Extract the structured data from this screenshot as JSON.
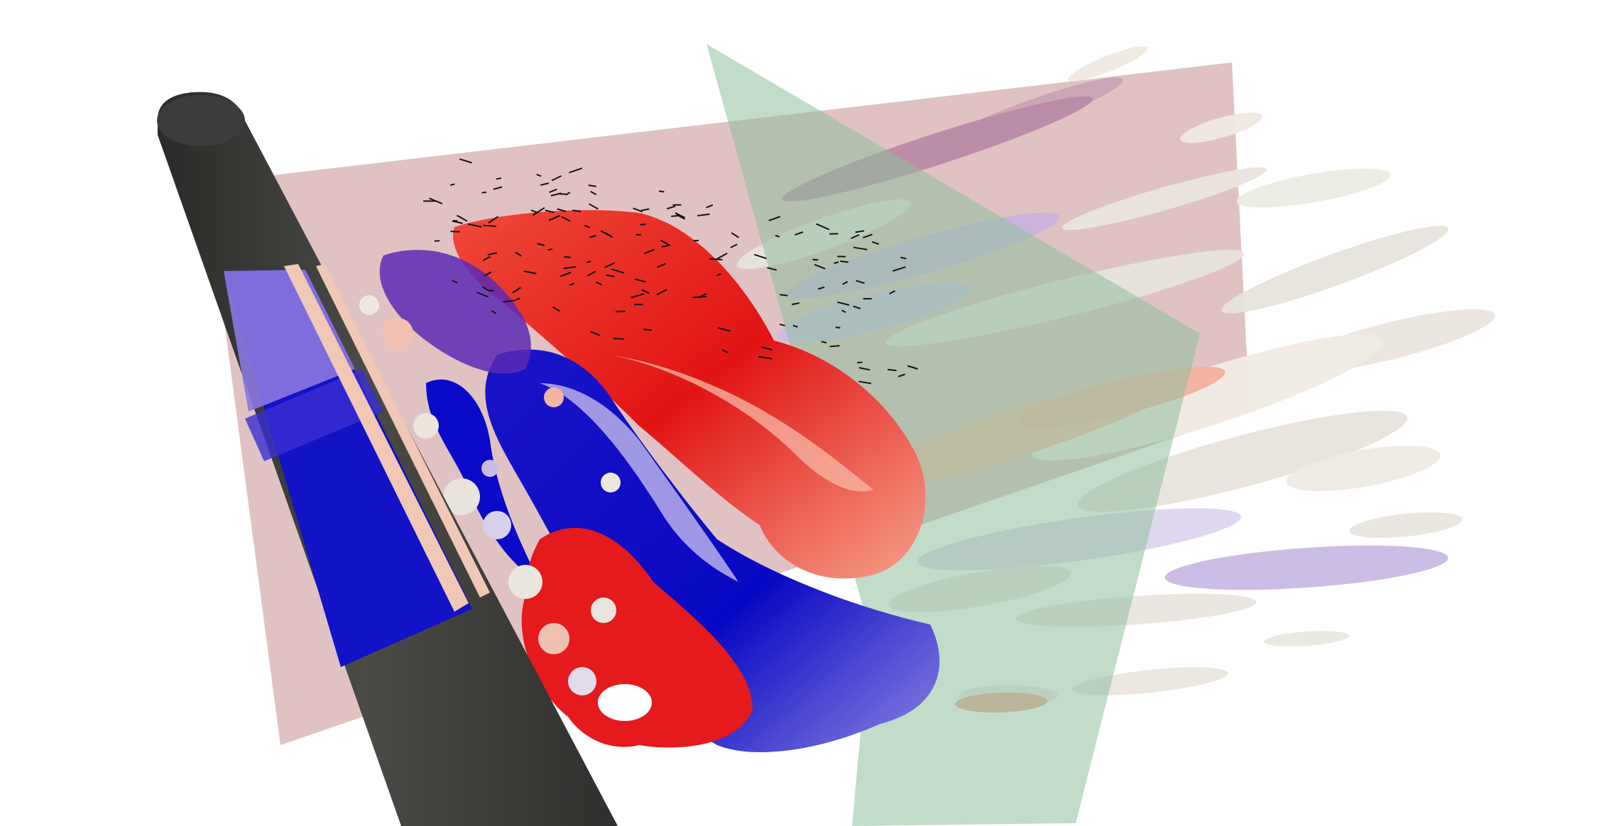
{
  "scene": {
    "kind": "3D flow visualization render (cylinder wake with vorticity isosurfaces)",
    "background_color": "#ffffff",
    "colors": {
      "cylinder": "#3c3c3a",
      "rear_plane": "#bc7878",
      "cut_plane": "#8fc09f",
      "vortex_red": "#e4181c",
      "vortex_blue": "#0a0ac8",
      "vortex_salmon": "#ec9a86",
      "vortex_lavender": "#a99adf",
      "vortex_white": "#ece7df",
      "vectors": "#141414"
    }
  }
}
